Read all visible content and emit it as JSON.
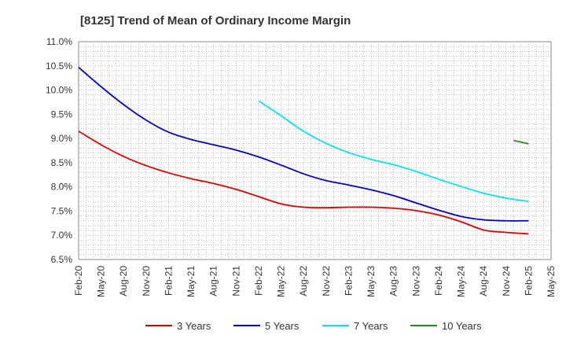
{
  "chart_data": {
    "type": "line",
    "title": "[8125]  Trend of Mean of Ordinary Income Margin",
    "xlabel": "",
    "ylabel": "",
    "x_ticks": [
      "Feb-20",
      "May-20",
      "Aug-20",
      "Nov-20",
      "Feb-21",
      "May-21",
      "Aug-21",
      "Nov-21",
      "Feb-22",
      "May-22",
      "Aug-22",
      "Nov-22",
      "Feb-23",
      "May-23",
      "Aug-23",
      "Nov-23",
      "Feb-24",
      "May-24",
      "Aug-24",
      "Nov-24",
      "Feb-25",
      "May-25"
    ],
    "y_ticks": [
      "6.5%",
      "7.0%",
      "7.5%",
      "8.0%",
      "8.5%",
      "9.0%",
      "9.5%",
      "10.0%",
      "10.5%",
      "11.0%"
    ],
    "ylim": [
      6.5,
      11.0
    ],
    "grid": true,
    "legend_position": "bottom",
    "series": [
      {
        "name": "3 Years",
        "color": "#e00000",
        "x": [
          "Feb-20",
          "May-20",
          "Aug-20",
          "Nov-20",
          "Feb-21",
          "May-21",
          "Aug-21",
          "Nov-21",
          "Feb-22",
          "May-22",
          "Aug-22",
          "Nov-22",
          "Feb-23",
          "May-23",
          "Aug-23",
          "Nov-23",
          "Feb-24",
          "May-24",
          "Aug-24",
          "Nov-24",
          "Feb-25"
        ],
        "values": [
          9.15,
          8.87,
          8.63,
          8.44,
          8.29,
          8.17,
          8.07,
          7.95,
          7.8,
          7.65,
          7.58,
          7.57,
          7.58,
          7.58,
          7.56,
          7.51,
          7.42,
          7.28,
          7.11,
          7.06,
          7.03
        ]
      },
      {
        "name": "5 Years",
        "color": "#0000cc",
        "x": [
          "Feb-20",
          "May-20",
          "Aug-20",
          "Nov-20",
          "Feb-21",
          "May-21",
          "Aug-21",
          "Nov-21",
          "Feb-22",
          "May-22",
          "Aug-22",
          "Nov-22",
          "Feb-23",
          "May-23",
          "Aug-23",
          "Nov-23",
          "Feb-24",
          "May-24",
          "Aug-24",
          "Nov-24",
          "Feb-25"
        ],
        "values": [
          10.47,
          10.07,
          9.7,
          9.38,
          9.13,
          8.98,
          8.87,
          8.76,
          8.62,
          8.45,
          8.27,
          8.13,
          8.04,
          7.94,
          7.82,
          7.67,
          7.52,
          7.39,
          7.32,
          7.3,
          7.3
        ]
      },
      {
        "name": "7 Years",
        "color": "#00e5ee",
        "x": [
          "Feb-22",
          "May-22",
          "Aug-22",
          "Nov-22",
          "Feb-23",
          "May-23",
          "Aug-23",
          "Nov-23",
          "Feb-24",
          "May-24",
          "Aug-24",
          "Nov-24",
          "Feb-25"
        ],
        "values": [
          9.78,
          9.47,
          9.15,
          8.9,
          8.71,
          8.57,
          8.46,
          8.32,
          8.16,
          8.01,
          7.87,
          7.77,
          7.7
        ]
      },
      {
        "name": "10 Years",
        "color": "#228b22",
        "x": [
          "Dec-24",
          "Feb-25"
        ],
        "values": [
          8.96,
          8.89
        ]
      }
    ]
  }
}
